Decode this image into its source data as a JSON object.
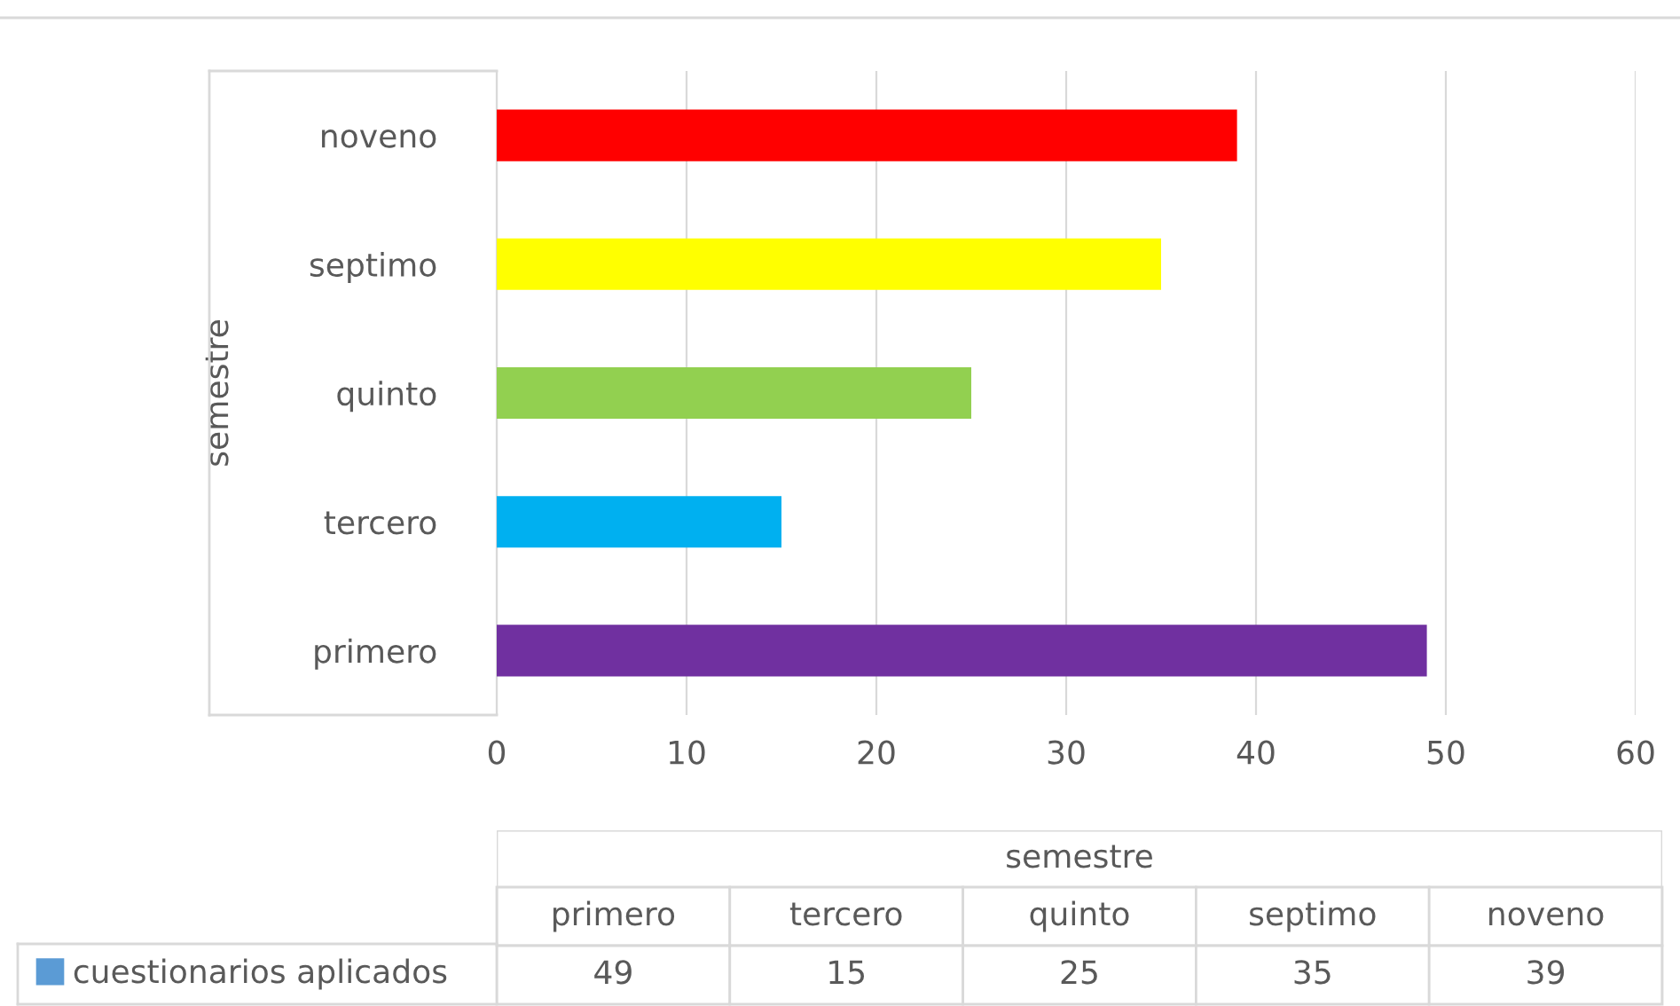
{
  "chart_data": [
    {
      "type": "bar",
      "orientation": "horizontal",
      "ylabel": "semestre",
      "categories": [
        "noveno",
        "septimo",
        "quinto",
        "tercero",
        "primero"
      ],
      "series": [
        {
          "name": "cuestionarios aplicados",
          "color": "#5b9bd5",
          "colors": [
            "#ff0000",
            "#ffff00",
            "#92d050",
            "#00b0f0",
            "#7030a0"
          ],
          "values": [
            39,
            35,
            25,
            15,
            49
          ]
        }
      ],
      "xlim": [
        0,
        60
      ],
      "xticks": [
        0,
        10,
        20,
        30,
        40,
        50,
        60
      ],
      "grid": "x",
      "legend": "bottom left"
    },
    {
      "type": "other",
      "xlabel": "semestre",
      "categories": [
        "primero",
        "tercero",
        "quinto",
        "septimo",
        "noveno"
      ],
      "values": [
        49,
        15,
        25,
        35,
        39
      ],
      "data_labels": true
    }
  ]
}
